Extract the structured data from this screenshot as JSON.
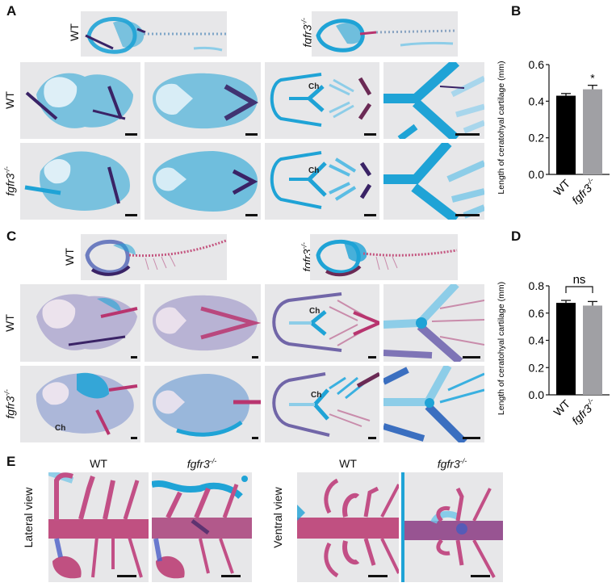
{
  "figure": {
    "panels": {
      "A": {
        "letter": "A",
        "stain_theme": "alcian-blue",
        "top_labels": [
          "WT",
          "fgfr3"
        ],
        "top_label_superscript": "-/-",
        "row_labels": [
          "WT",
          "fgfr3"
        ],
        "row_label_superscript": "-/-",
        "annotations": [
          "Ch",
          "Ch"
        ]
      },
      "B": {
        "letter": "B"
      },
      "C": {
        "letter": "C",
        "stain_theme": "alcian-alizarin",
        "top_labels": [
          "WT",
          "fgfr3"
        ],
        "top_label_superscript": "-/-",
        "row_labels": [
          "WT",
          "fgfr3"
        ],
        "row_label_superscript": "-/-",
        "annotations": [
          "Ch",
          "Ch",
          "Ch"
        ]
      },
      "D": {
        "letter": "D"
      },
      "E": {
        "letter": "E",
        "column_labels": [
          "WT",
          "fgfr3",
          "WT",
          "fgfr3"
        ],
        "column_label_superscript": "-/-",
        "row_labels": [
          "Lateral view",
          "Ventral view"
        ]
      }
    },
    "colors": {
      "alcian_blue": "#1fa3d6",
      "alizarin_red": "#b8356f",
      "dark_purple": "#3a2366",
      "image_bg": "#e7e7e9",
      "wt_bar": "#000000",
      "mutant_bar": "#a0a0a4"
    }
  },
  "chart_data": [
    {
      "id": "B",
      "type": "bar",
      "title": "",
      "categories": [
        "WT",
        "fgfr3-/-"
      ],
      "values": [
        0.43,
        0.465
      ],
      "errors": [
        0.012,
        0.022
      ],
      "colors": [
        "#000000",
        "#a0a0a4"
      ],
      "ylabel": "Length of ceratohyal cartilage (mm)",
      "xlabel": "",
      "ylim": [
        0,
        0.6
      ],
      "yticks": [
        0.0,
        0.2,
        0.4,
        0.6
      ],
      "ytick_labels": [
        "0.0",
        "0.2",
        "0.4",
        "0.6"
      ],
      "annotations": [
        {
          "text": "*",
          "target": "fgfr3-/-"
        }
      ],
      "grid": false,
      "legend": "none"
    },
    {
      "id": "D",
      "type": "bar",
      "title": "",
      "categories": [
        "WT",
        "fgfr3-/-"
      ],
      "values": [
        0.675,
        0.655
      ],
      "errors": [
        0.018,
        0.03
      ],
      "colors": [
        "#000000",
        "#a0a0a4"
      ],
      "ylabel": "Length of ceratohyal cartilage (mm)",
      "xlabel": "",
      "ylim": [
        0,
        0.8
      ],
      "yticks": [
        0.0,
        0.2,
        0.4,
        0.6,
        0.8
      ],
      "ytick_labels": [
        "0.0",
        "0.2",
        "0.4",
        "0.6",
        "0.8"
      ],
      "annotations": [
        {
          "text": "ns",
          "type": "bracket",
          "between": [
            "WT",
            "fgfr3-/-"
          ]
        }
      ],
      "grid": false,
      "legend": "none"
    }
  ]
}
